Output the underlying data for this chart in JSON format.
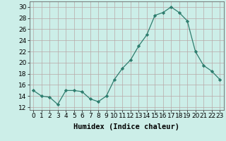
{
  "x": [
    0,
    1,
    2,
    3,
    4,
    5,
    6,
    7,
    8,
    9,
    10,
    11,
    12,
    13,
    14,
    15,
    16,
    17,
    18,
    19,
    20,
    21,
    22,
    23
  ],
  "y": [
    15,
    14,
    13.8,
    12.5,
    15,
    15,
    14.8,
    13.5,
    13,
    14,
    17,
    19,
    20.5,
    23,
    25,
    28.5,
    29,
    30,
    29,
    27.5,
    22,
    19.5,
    18.5,
    17
  ],
  "line_color": "#2e7d6e",
  "marker": "D",
  "marker_size": 2.2,
  "bg_color": "#cceee8",
  "grid_color_major": "#b8a8a8",
  "grid_color_minor": "#b8a8a8",
  "xlabel": "Humidex (Indice chaleur)",
  "xlabel_fontsize": 7.5,
  "tick_fontsize": 6.5,
  "ylim": [
    11.5,
    31
  ],
  "yticks": [
    12,
    14,
    16,
    18,
    20,
    22,
    24,
    26,
    28,
    30
  ],
  "xticks": [
    0,
    1,
    2,
    3,
    4,
    5,
    6,
    7,
    8,
    9,
    10,
    11,
    12,
    13,
    14,
    15,
    16,
    17,
    18,
    19,
    20,
    21,
    22,
    23
  ]
}
